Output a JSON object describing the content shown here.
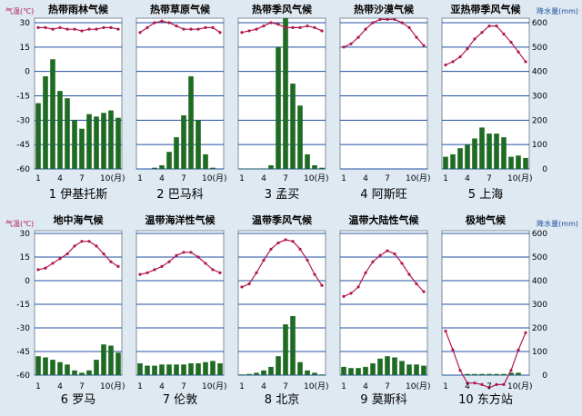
{
  "colors": {
    "background": "#dfe9f1",
    "panel": "#ffffff",
    "grid": "#1f4fa3",
    "temperature": "#b0184c",
    "precipitation": "#1f6b24",
    "left_axis_label": "#b0184c",
    "right_axis_label": "#1f4fa3"
  },
  "axes": {
    "left_label": "气温(℃)",
    "right_label": "降水量(mm)",
    "temp_ticks": [
      "30",
      "15",
      "0",
      "-15",
      "-30",
      "-45",
      "-60"
    ],
    "precip_ticks": [
      "600",
      "500",
      "400",
      "300",
      "200",
      "100",
      "0"
    ],
    "x_ticks": [
      "1",
      "4",
      "7",
      "10(月)"
    ]
  },
  "chart_data": [
    {
      "type": "bar",
      "title": "热带雨林气候",
      "caption": "1 伊基托斯",
      "months": [
        1,
        2,
        3,
        4,
        5,
        6,
        7,
        8,
        9,
        10,
        11,
        12
      ],
      "temperature": [
        27,
        27,
        26,
        27,
        26,
        26,
        25,
        26,
        26,
        27,
        27,
        26
      ],
      "precipitation": [
        270,
        380,
        450,
        320,
        290,
        200,
        165,
        225,
        215,
        230,
        240,
        210
      ],
      "temp_range": [
        -60,
        30
      ],
      "precip_range": [
        0,
        600
      ]
    },
    {
      "type": "bar",
      "title": "热带草原气候",
      "caption": "2 巴马科",
      "months": [
        1,
        2,
        3,
        4,
        5,
        6,
        7,
        8,
        9,
        10,
        11,
        12
      ],
      "temperature": [
        24,
        27,
        30,
        31,
        30,
        28,
        26,
        26,
        26,
        27,
        27,
        24
      ],
      "precipitation": [
        0,
        0,
        5,
        15,
        70,
        130,
        220,
        380,
        200,
        60,
        5,
        0
      ],
      "temp_range": [
        -60,
        30
      ],
      "precip_range": [
        0,
        600
      ]
    },
    {
      "type": "bar",
      "title": "热带季风气候",
      "caption": "3 孟买",
      "months": [
        1,
        2,
        3,
        4,
        5,
        6,
        7,
        8,
        9,
        10,
        11,
        12
      ],
      "temperature": [
        24,
        25,
        26,
        28,
        30,
        29,
        27,
        27,
        27,
        28,
        27,
        25
      ],
      "precipitation": [
        2,
        2,
        2,
        2,
        15,
        500,
        650,
        350,
        260,
        60,
        15,
        5
      ],
      "temp_range": [
        -60,
        30
      ],
      "precip_range": [
        0,
        600
      ]
    },
    {
      "type": "bar",
      "title": "热带沙漠气候",
      "caption": "4 阿斯旺",
      "months": [
        1,
        2,
        3,
        4,
        5,
        6,
        7,
        8,
        9,
        10,
        11,
        12
      ],
      "temperature": [
        15,
        17,
        21,
        26,
        30,
        32,
        32,
        32,
        30,
        27,
        21,
        16
      ],
      "precipitation": [
        0,
        0,
        0,
        0,
        0,
        0,
        0,
        0,
        0,
        0,
        0,
        0
      ],
      "temp_range": [
        -60,
        30
      ],
      "precip_range": [
        0,
        600
      ]
    },
    {
      "type": "bar",
      "title": "亚热带季风气候",
      "caption": "5 上海",
      "months": [
        1,
        2,
        3,
        4,
        5,
        6,
        7,
        8,
        9,
        10,
        11,
        12
      ],
      "temperature": [
        4,
        6,
        9,
        14,
        20,
        24,
        28,
        28,
        23,
        18,
        12,
        6
      ],
      "precipitation": [
        50,
        60,
        85,
        100,
        125,
        170,
        145,
        145,
        130,
        50,
        55,
        45
      ],
      "temp_range": [
        -60,
        30
      ],
      "precip_range": [
        0,
        600
      ]
    },
    {
      "type": "bar",
      "title": "地中海气候",
      "caption": "6 罗马",
      "months": [
        1,
        2,
        3,
        4,
        5,
        6,
        7,
        8,
        9,
        10,
        11,
        12
      ],
      "temperature": [
        7,
        8,
        11,
        14,
        17,
        22,
        25,
        25,
        22,
        17,
        12,
        9
      ],
      "precipitation": [
        80,
        75,
        65,
        55,
        45,
        20,
        10,
        20,
        65,
        130,
        125,
        95
      ],
      "temp_range": [
        -60,
        30
      ],
      "precip_range": [
        0,
        600
      ]
    },
    {
      "type": "bar",
      "title": "温带海洋性气候",
      "caption": "7 伦敦",
      "months": [
        1,
        2,
        3,
        4,
        5,
        6,
        7,
        8,
        9,
        10,
        11,
        12
      ],
      "temperature": [
        4,
        5,
        7,
        9,
        12,
        16,
        18,
        18,
        15,
        11,
        7,
        5
      ],
      "precipitation": [
        50,
        40,
        40,
        45,
        45,
        45,
        45,
        50,
        50,
        55,
        60,
        50
      ],
      "temp_range": [
        -60,
        30
      ],
      "precip_range": [
        0,
        600
      ]
    },
    {
      "type": "bar",
      "title": "温带季风气候",
      "caption": "8 北京",
      "months": [
        1,
        2,
        3,
        4,
        5,
        6,
        7,
        8,
        9,
        10,
        11,
        12
      ],
      "temperature": [
        -4,
        -2,
        5,
        13,
        20,
        24,
        26,
        25,
        20,
        13,
        4,
        -3
      ],
      "precipitation": [
        3,
        5,
        10,
        20,
        35,
        80,
        215,
        250,
        55,
        20,
        10,
        3
      ],
      "temp_range": [
        -60,
        30
      ],
      "precip_range": [
        0,
        600
      ]
    },
    {
      "type": "bar",
      "title": "温带大陆性气候",
      "caption": "9 莫斯科",
      "months": [
        1,
        2,
        3,
        4,
        5,
        6,
        7,
        8,
        9,
        10,
        11,
        12
      ],
      "temperature": [
        -10,
        -8,
        -4,
        5,
        12,
        16,
        19,
        17,
        11,
        4,
        -2,
        -7
      ],
      "precipitation": [
        35,
        30,
        30,
        35,
        50,
        70,
        80,
        75,
        60,
        45,
        45,
        40
      ],
      "temp_range": [
        -60,
        30
      ],
      "precip_range": [
        0,
        600
      ]
    },
    {
      "type": "bar",
      "title": "极地气候",
      "caption": "10 东方站",
      "months": [
        1,
        2,
        3,
        4,
        5,
        6,
        7,
        8,
        9,
        10,
        11,
        12
      ],
      "temperature": [
        -32,
        -44,
        -57,
        -65,
        -65,
        -66,
        -68,
        -66,
        -66,
        -57,
        -44,
        -33
      ],
      "precipitation": [
        0,
        0,
        0,
        5,
        5,
        5,
        5,
        5,
        5,
        10,
        10,
        0
      ],
      "temp_range": [
        -60,
        30
      ],
      "precip_range": [
        0,
        600
      ]
    }
  ]
}
